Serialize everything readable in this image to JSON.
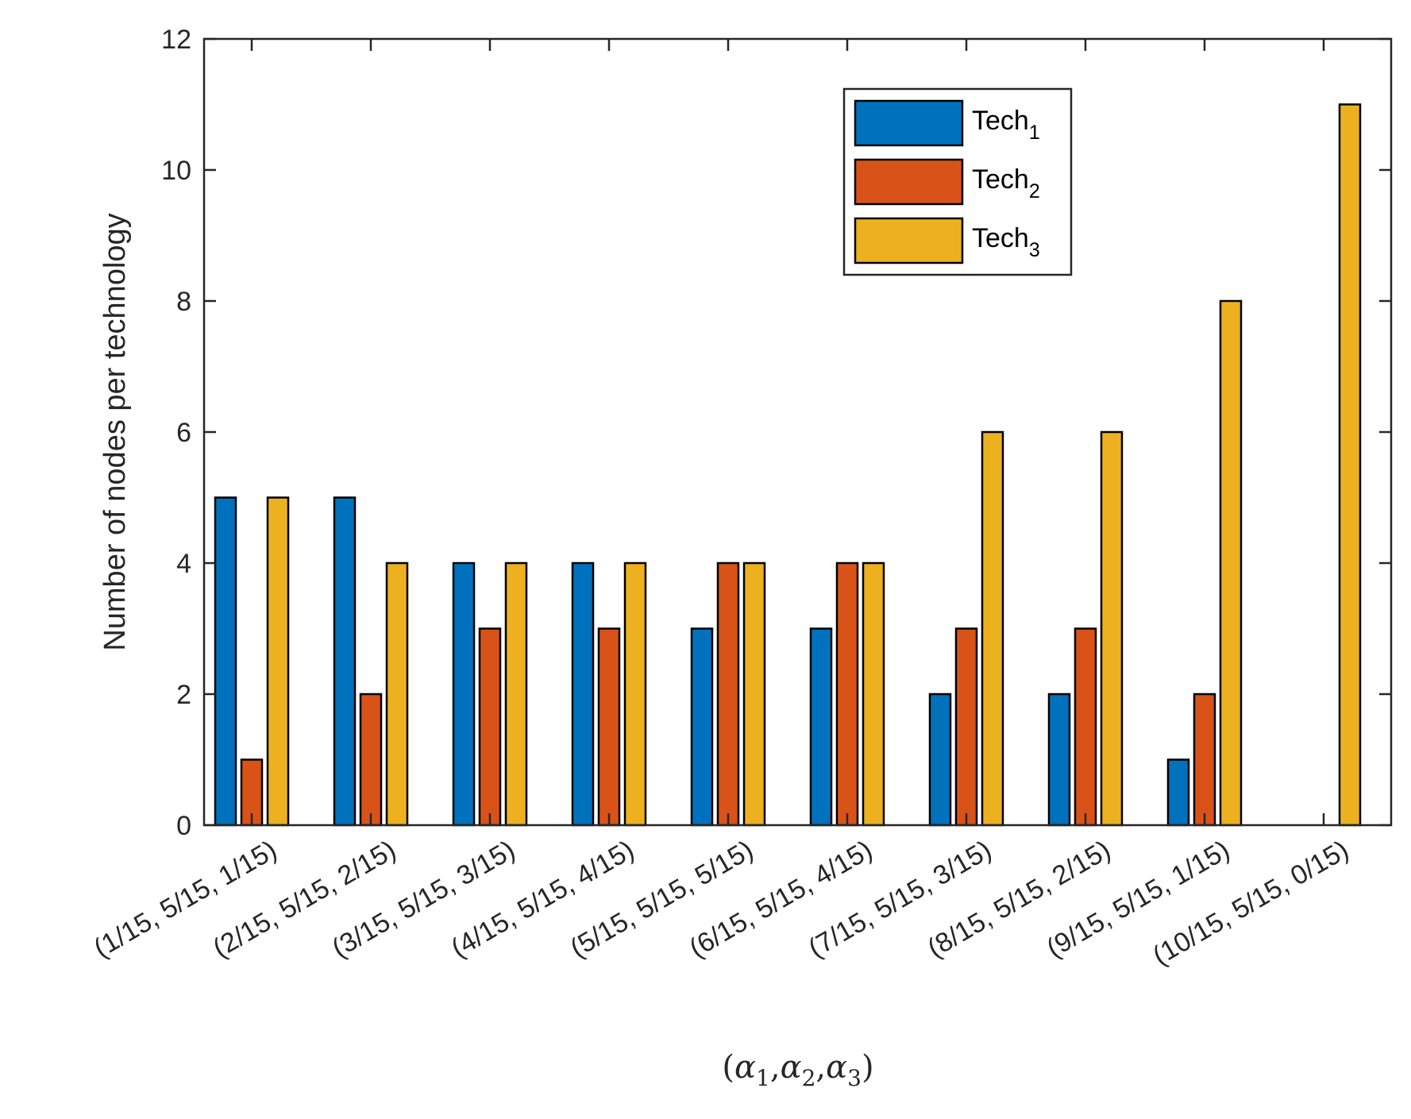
{
  "chart_data": {
    "type": "bar",
    "title": "",
    "categories": [
      "(1/15, 5/15, 1/15)",
      "(2/15, 5/15, 2/15)",
      "(3/15, 5/15, 3/15)",
      "(4/15, 5/15, 4/15)",
      "(5/15, 5/15, 5/15)",
      "(6/15, 5/15, 4/15)",
      "(7/15, 5/15, 3/15)",
      "(8/15, 5/15, 2/15)",
      "(9/15, 5/15, 1/15)",
      "(10/15, 5/15, 0/15)"
    ],
    "series": [
      {
        "name": "Tech",
        "subscript": "1",
        "color": "#0072BD",
        "values": [
          5,
          5,
          4,
          4,
          3,
          3,
          2,
          2,
          1,
          0
        ]
      },
      {
        "name": "Tech",
        "subscript": "2",
        "color": "#D95319",
        "values": [
          1,
          2,
          3,
          3,
          4,
          4,
          3,
          3,
          2,
          0
        ]
      },
      {
        "name": "Tech",
        "subscript": "3",
        "color": "#EDB120",
        "values": [
          5,
          4,
          4,
          4,
          4,
          4,
          6,
          6,
          8,
          11
        ]
      }
    ],
    "ylabel": "Number of nodes per technology",
    "xlabel": {
      "open": "(",
      "close": ")",
      "separator": ",",
      "symbol": "α",
      "subscripts": [
        "1",
        "2",
        "3"
      ]
    },
    "ylim": [
      0,
      12
    ],
    "yticks": [
      "0",
      "2",
      "4",
      "6",
      "8",
      "10",
      "12"
    ],
    "legend_position": "top-right",
    "grid": false
  }
}
